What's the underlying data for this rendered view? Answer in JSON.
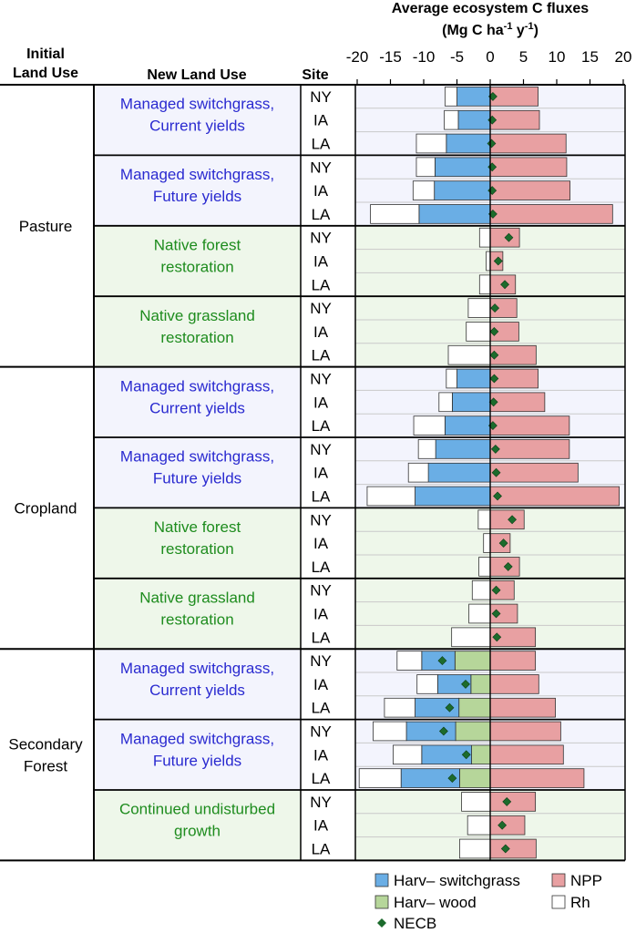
{
  "chart_data": {
    "type": "bar",
    "orientation": "horizontal",
    "stacking": "diverging",
    "title_line1": "Average ecosystem C fluxes",
    "title_line2": "(Mg C ha",
    "title_sup1": "-1",
    "title_mid": " y",
    "title_sup2": "-1",
    "title_end": ")",
    "col_initial": "Initial",
    "col_initial2": "Land Use",
    "col_new": "New Land Use",
    "col_site": "Site",
    "xlim": [
      -20,
      20
    ],
    "ticks": [
      -20,
      -15,
      -10,
      -5,
      0,
      5,
      10,
      15,
      20
    ],
    "grid": "horizontal-only",
    "legend_position": "bottom-right",
    "colors": {
      "harv_switchgrass": "#6aaee5",
      "harv_wood": "#b6d69a",
      "npp": "#e8a0a2",
      "rh": "#ffffff",
      "necb": "#1c6b2c",
      "bg_switchgrass": "#f3f4fd",
      "bg_native": "#eef7ea",
      "text_switchgrass": "#2a2ad0",
      "text_native": "#1e8c1e"
    },
    "legend": {
      "harv_switchgrass": "Harv– switchgrass",
      "harv_wood": "Harv– wood",
      "necb": "NECB",
      "npp": "NPP",
      "rh": "Rh"
    },
    "groups": [
      {
        "initial": [
          "Pasture"
        ],
        "uses": [
          {
            "kind": "switchgrass",
            "label": [
              "Managed switchgrass,",
              "Current yields"
            ],
            "rows": [
              {
                "site": "NY",
                "harv_switchgrass": 5.0,
                "harv_wood": 0,
                "rh": 1.8,
                "npp": 7.2,
                "necb": 0.4
              },
              {
                "site": "IA",
                "harv_switchgrass": 4.8,
                "harv_wood": 0,
                "rh": 2.1,
                "npp": 7.4,
                "necb": 0.3
              },
              {
                "site": "LA",
                "harv_switchgrass": 6.6,
                "harv_wood": 0,
                "rh": 4.5,
                "npp": 11.4,
                "necb": 0.2
              }
            ]
          },
          {
            "kind": "switchgrass",
            "label": [
              "Managed switchgrass,",
              "Future yields"
            ],
            "rows": [
              {
                "site": "NY",
                "harv_switchgrass": 8.3,
                "harv_wood": 0,
                "rh": 2.8,
                "npp": 11.5,
                "necb": 0.3
              },
              {
                "site": "IA",
                "harv_switchgrass": 8.4,
                "harv_wood": 0,
                "rh": 3.2,
                "npp": 12.0,
                "necb": 0.3
              },
              {
                "site": "LA",
                "harv_switchgrass": 10.7,
                "harv_wood": 0,
                "rh": 7.3,
                "npp": 18.4,
                "necb": 0.4
              }
            ]
          },
          {
            "kind": "native",
            "label": [
              "Native forest",
              "restoration"
            ],
            "rows": [
              {
                "site": "NY",
                "harv_switchgrass": 0,
                "harv_wood": 0,
                "rh": 1.6,
                "npp": 4.4,
                "necb": 2.8
              },
              {
                "site": "IA",
                "harv_switchgrass": 0,
                "harv_wood": 0,
                "rh": 0.6,
                "npp": 1.9,
                "necb": 1.2
              },
              {
                "site": "LA",
                "harv_switchgrass": 0,
                "harv_wood": 0,
                "rh": 1.6,
                "npp": 3.8,
                "necb": 2.2
              }
            ]
          },
          {
            "kind": "native",
            "label": [
              "Native grassland",
              "restoration"
            ],
            "rows": [
              {
                "site": "NY",
                "harv_switchgrass": 0,
                "harv_wood": 0,
                "rh": 3.3,
                "npp": 4.0,
                "necb": 0.7
              },
              {
                "site": "IA",
                "harv_switchgrass": 0,
                "harv_wood": 0,
                "rh": 3.6,
                "npp": 4.3,
                "necb": 0.6
              },
              {
                "site": "LA",
                "harv_switchgrass": 0,
                "harv_wood": 0,
                "rh": 6.3,
                "npp": 6.9,
                "necb": 0.6
              }
            ]
          }
        ]
      },
      {
        "initial": [
          "Cropland"
        ],
        "uses": [
          {
            "kind": "switchgrass",
            "label": [
              "Managed switchgrass,",
              "Current yields"
            ],
            "rows": [
              {
                "site": "NY",
                "harv_switchgrass": 5.0,
                "harv_wood": 0,
                "rh": 1.6,
                "npp": 7.2,
                "necb": 0.6
              },
              {
                "site": "IA",
                "harv_switchgrass": 5.7,
                "harv_wood": 0,
                "rh": 2.0,
                "npp": 8.2,
                "necb": 0.5
              },
              {
                "site": "LA",
                "harv_switchgrass": 6.8,
                "harv_wood": 0,
                "rh": 4.7,
                "npp": 11.9,
                "necb": 0.4
              }
            ]
          },
          {
            "kind": "switchgrass",
            "label": [
              "Managed switchgrass,",
              "Future yields"
            ],
            "rows": [
              {
                "site": "NY",
                "harv_switchgrass": 8.2,
                "harv_wood": 0,
                "rh": 2.6,
                "npp": 11.9,
                "necb": 0.8
              },
              {
                "site": "IA",
                "harv_switchgrass": 9.3,
                "harv_wood": 0,
                "rh": 3.0,
                "npp": 13.2,
                "necb": 0.9
              },
              {
                "site": "LA",
                "harv_switchgrass": 11.3,
                "harv_wood": 0,
                "rh": 7.2,
                "npp": 19.4,
                "necb": 1.1
              }
            ]
          },
          {
            "kind": "native",
            "label": [
              "Native forest",
              "restoration"
            ],
            "rows": [
              {
                "site": "NY",
                "harv_switchgrass": 0,
                "harv_wood": 0,
                "rh": 1.8,
                "npp": 5.1,
                "necb": 3.3
              },
              {
                "site": "IA",
                "harv_switchgrass": 0,
                "harv_wood": 0,
                "rh": 1.0,
                "npp": 3.0,
                "necb": 2.0
              },
              {
                "site": "LA",
                "harv_switchgrass": 0,
                "harv_wood": 0,
                "rh": 1.7,
                "npp": 4.4,
                "necb": 2.7
              }
            ]
          },
          {
            "kind": "native",
            "label": [
              "Native grassland",
              "restoration"
            ],
            "rows": [
              {
                "site": "NY",
                "harv_switchgrass": 0,
                "harv_wood": 0,
                "rh": 2.7,
                "npp": 3.6,
                "necb": 0.9
              },
              {
                "site": "IA",
                "harv_switchgrass": 0,
                "harv_wood": 0,
                "rh": 3.2,
                "npp": 4.1,
                "necb": 0.9
              },
              {
                "site": "LA",
                "harv_switchgrass": 0,
                "harv_wood": 0,
                "rh": 5.8,
                "npp": 6.8,
                "necb": 1.0
              }
            ]
          }
        ]
      },
      {
        "initial": [
          "Secondary",
          "Forest"
        ],
        "uses": [
          {
            "kind": "switchgrass",
            "label": [
              "Managed switchgrass,",
              "Current yields"
            ],
            "rows": [
              {
                "site": "NY",
                "harv_switchgrass": 5.0,
                "harv_wood": 5.3,
                "rh": 3.7,
                "npp": 6.8,
                "necb": -7.2
              },
              {
                "site": "IA",
                "harv_switchgrass": 5.0,
                "harv_wood": 2.9,
                "rh": 3.1,
                "npp": 7.3,
                "necb": -3.7
              },
              {
                "site": "LA",
                "harv_switchgrass": 6.6,
                "harv_wood": 4.7,
                "rh": 4.6,
                "npp": 9.8,
                "necb": -6.1
              }
            ]
          },
          {
            "kind": "switchgrass",
            "label": [
              "Managed switchgrass,",
              "Future yields"
            ],
            "rows": [
              {
                "site": "NY",
                "harv_switchgrass": 7.4,
                "harv_wood": 5.2,
                "rh": 5.0,
                "npp": 10.6,
                "necb": -7.0
              },
              {
                "site": "IA",
                "harv_switchgrass": 7.5,
                "harv_wood": 2.8,
                "rh": 4.3,
                "npp": 11.0,
                "necb": -3.6
              },
              {
                "site": "LA",
                "harv_switchgrass": 8.8,
                "harv_wood": 4.6,
                "rh": 6.3,
                "npp": 14.1,
                "necb": -5.7
              }
            ]
          },
          {
            "kind": "native",
            "label": [
              "Continued undisturbed",
              "growth"
            ],
            "rows": [
              {
                "site": "NY",
                "harv_switchgrass": 0,
                "harv_wood": 0,
                "rh": 4.3,
                "npp": 6.8,
                "necb": 2.5
              },
              {
                "site": "IA",
                "harv_switchgrass": 0,
                "harv_wood": 0,
                "rh": 3.4,
                "npp": 5.2,
                "necb": 1.8
              },
              {
                "site": "LA",
                "harv_switchgrass": 0,
                "harv_wood": 0,
                "rh": 4.6,
                "npp": 6.9,
                "necb": 2.3
              }
            ]
          }
        ]
      }
    ]
  }
}
